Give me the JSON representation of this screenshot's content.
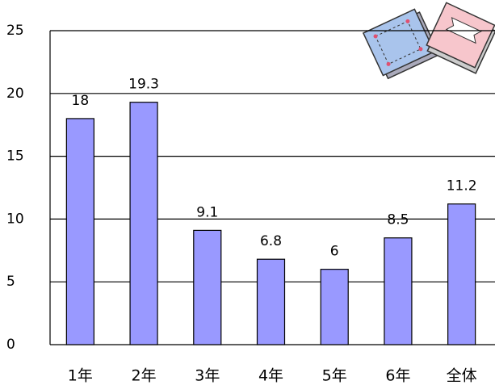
{
  "chart_data": {
    "type": "bar",
    "categories": [
      "1年",
      "2年",
      "3年",
      "4年",
      "5年",
      "6年",
      "全体"
    ],
    "values": [
      18,
      19.3,
      9.1,
      6.8,
      6,
      8.5,
      11.2
    ],
    "color": "#9999ff",
    "ylim": [
      0,
      25
    ],
    "yticks": [
      0,
      5,
      10,
      15,
      20,
      25
    ],
    "grid": true
  }
}
